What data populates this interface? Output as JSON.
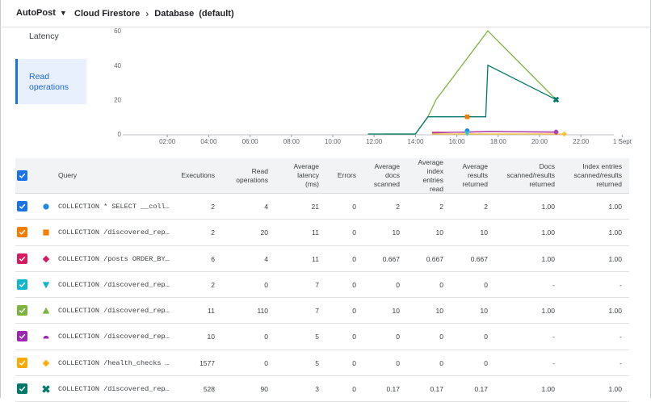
{
  "header": {
    "project": "AutoPost",
    "service": "Cloud Firestore",
    "section": "Database",
    "database": "(default)"
  },
  "metrics": {
    "latency_label": "Latency",
    "read_ops_label": "Read operations"
  },
  "chart_data": {
    "type": "line",
    "y_ticks": [
      "60",
      "40",
      "20",
      "0"
    ],
    "ylim": [
      0,
      60
    ],
    "x_ticks": [
      "02:00",
      "04:00",
      "06:00",
      "08:00",
      "10:00",
      "12:00",
      "14:00",
      "16:00",
      "18:00",
      "20:00",
      "22:00",
      "1 Sept"
    ],
    "grid": false,
    "series": [
      {
        "color": "#7cb342",
        "marker": "triangle",
        "points": [
          [
            12.5,
            0
          ],
          [
            14,
            0
          ],
          [
            14.6,
            10
          ],
          [
            15,
            20
          ],
          [
            17.5,
            60
          ],
          [
            20.8,
            20
          ]
        ]
      },
      {
        "color": "#00796b",
        "marker": "x",
        "points": [
          [
            11.7,
            0
          ],
          [
            14,
            0
          ],
          [
            14.6,
            10
          ],
          [
            16,
            10
          ],
          [
            16.5,
            10
          ],
          [
            17.4,
            10
          ],
          [
            17.5,
            40
          ],
          [
            20.8,
            20
          ]
        ]
      },
      {
        "color": "#f57c00",
        "marker": "square",
        "points": [
          [
            16.5,
            10
          ]
        ]
      },
      {
        "color": "#d81b60",
        "marker": "diamond",
        "points": [
          [
            14.8,
            1
          ],
          [
            16.5,
            1
          ],
          [
            17.5,
            1.5
          ],
          [
            20.8,
            1
          ]
        ]
      },
      {
        "color": "#ab47bc",
        "marker": "circle",
        "points": [
          [
            14.8,
            0.5
          ],
          [
            16.5,
            1.2
          ],
          [
            17.5,
            1.5
          ],
          [
            20.8,
            1.2
          ]
        ]
      },
      {
        "color": "#1e88e5",
        "marker": "circle",
        "points": [
          [
            16.5,
            2
          ]
        ]
      },
      {
        "color": "#f9c02d",
        "marker": "plus",
        "points": [
          [
            14.8,
            0
          ],
          [
            21.2,
            0
          ]
        ]
      },
      {
        "color": "#26c6da",
        "marker": "triangle-down",
        "points": [
          [
            16.5,
            0.3
          ]
        ]
      }
    ]
  },
  "table": {
    "headers": {
      "query": "Query",
      "executions": "Executions",
      "read_ops": [
        "Read",
        "operations"
      ],
      "avg_latency": [
        "Average",
        "latency",
        "(ms)"
      ],
      "errors": "Errors",
      "avg_docs": [
        "Average",
        "docs",
        "scanned"
      ],
      "avg_index": [
        "Average",
        "index",
        "entries",
        "read"
      ],
      "avg_results": [
        "Average",
        "results",
        "returned"
      ],
      "docs_ratio": [
        "Docs",
        "scanned/results",
        "returned"
      ],
      "index_ratio": [
        "Index entries",
        "scanned/results",
        "returned"
      ]
    },
    "rows": [
      {
        "color": "#1a73e8",
        "marker": "circle",
        "marker_color": "#1e88e5",
        "query": "COLLECTION * SELECT __coll…",
        "executions": "2",
        "read_ops": "4",
        "latency": "21",
        "errors": "0",
        "docs": "2",
        "index": "2",
        "results": "2",
        "docs_ratio": "1.00",
        "index_ratio": "1.00"
      },
      {
        "color": "#f57c00",
        "marker": "square",
        "marker_color": "#f57c00",
        "query": "COLLECTION /discovered_rep…",
        "executions": "2",
        "read_ops": "20",
        "latency": "11",
        "errors": "0",
        "docs": "10",
        "index": "10",
        "results": "10",
        "docs_ratio": "1.00",
        "index_ratio": "1.00"
      },
      {
        "color": "#d81b60",
        "marker": "diamond",
        "marker_color": "#d81b60",
        "query": "COLLECTION /posts ORDER_BY…",
        "executions": "6",
        "read_ops": "4",
        "latency": "11",
        "errors": "0",
        "docs": "0.667",
        "index": "0.667",
        "results": "0.667",
        "docs_ratio": "1.00",
        "index_ratio": "1.00"
      },
      {
        "color": "#12b5cb",
        "marker": "triangle-down",
        "marker_color": "#12b5cb",
        "query": "COLLECTION /discovered_rep…",
        "executions": "2",
        "read_ops": "0",
        "latency": "7",
        "errors": "0",
        "docs": "0",
        "index": "0",
        "results": "0",
        "docs_ratio": "-",
        "index_ratio": "-"
      },
      {
        "color": "#7cb342",
        "marker": "triangle",
        "marker_color": "#7cb342",
        "query": "COLLECTION /discovered_rep…",
        "executions": "11",
        "read_ops": "110",
        "latency": "7",
        "errors": "0",
        "docs": "10",
        "index": "10",
        "results": "10",
        "docs_ratio": "1.00",
        "index_ratio": "1.00"
      },
      {
        "color": "#9c27b0",
        "marker": "semicircle",
        "marker_color": "#9c27b0",
        "query": "COLLECTION /discovered_rep…",
        "executions": "10",
        "read_ops": "0",
        "latency": "5",
        "errors": "0",
        "docs": "0",
        "index": "0",
        "results": "0",
        "docs_ratio": "-",
        "index_ratio": "-"
      },
      {
        "color": "#f9ab00",
        "marker": "plus",
        "marker_color": "#f9ab00",
        "query": "COLLECTION /health_checks …",
        "executions": "1577",
        "read_ops": "0",
        "latency": "5",
        "errors": "0",
        "docs": "0",
        "index": "0",
        "results": "0",
        "docs_ratio": "-",
        "index_ratio": "-"
      },
      {
        "color": "#00796b",
        "marker": "x",
        "marker_color": "#00796b",
        "query": "COLLECTION /discovered_rep…",
        "executions": "528",
        "read_ops": "90",
        "latency": "3",
        "errors": "0",
        "docs": "0.17",
        "index": "0.17",
        "results": "0.17",
        "docs_ratio": "1.00",
        "index_ratio": "1.00"
      }
    ]
  }
}
